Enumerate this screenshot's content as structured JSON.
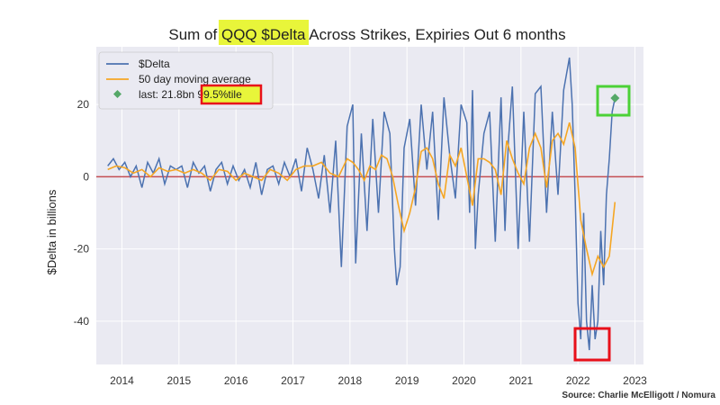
{
  "chart_data": {
    "type": "line",
    "title": {
      "before": "Sum of ",
      "highlight": "QQQ $Delta",
      "after": " Across Strikes, Expiries Out 6 months"
    },
    "ylabel": "$Delta in billions",
    "xlabel": "",
    "xlim": [
      2013.55,
      2023.15
    ],
    "ylim": [
      -52,
      36
    ],
    "xticks": [
      2014,
      2015,
      2016,
      2017,
      2018,
      2019,
      2020,
      2021,
      2022,
      2023
    ],
    "yticks": [
      -40,
      -20,
      0,
      20
    ],
    "grid": true,
    "legend_position": "top-left",
    "legend": {
      "delta": "$Delta",
      "ma": "50 day moving average",
      "last_prefix": "last: 21.8bn ",
      "last_highlight": "99.5%tile"
    },
    "source": "Source: Charlie McElligott / Nomura",
    "colors": {
      "delta": "#4c72b0",
      "ma": "#f5a623",
      "last_marker": "#55a868",
      "zero_line": "#c44e52",
      "highlight_yellow": "#e8f53a",
      "box_red": "#e8101a",
      "box_green": "#4cd137",
      "plot_bg": "#eaeaf2"
    },
    "zero_line": 0,
    "last_point": {
      "x": 2022.65,
      "y": 21.8,
      "label": "last: 21.8bn",
      "percentile": "99.5%tile"
    },
    "series": [
      {
        "name": "$Delta",
        "x": [
          2013.75,
          2013.85,
          2013.95,
          2014.05,
          2014.15,
          2014.25,
          2014.35,
          2014.45,
          2014.55,
          2014.65,
          2014.75,
          2014.85,
          2014.95,
          2015.05,
          2015.15,
          2015.25,
          2015.35,
          2015.45,
          2015.55,
          2015.65,
          2015.75,
          2015.85,
          2015.95,
          2016.05,
          2016.15,
          2016.25,
          2016.35,
          2016.45,
          2016.55,
          2016.65,
          2016.75,
          2016.85,
          2016.95,
          2017.05,
          2017.15,
          2017.25,
          2017.35,
          2017.45,
          2017.55,
          2017.65,
          2017.75,
          2017.85,
          2017.95,
          2018.05,
          2018.1,
          2018.2,
          2018.3,
          2018.4,
          2018.5,
          2018.6,
          2018.7,
          2018.78,
          2018.82,
          2018.88,
          2018.95,
          2019.05,
          2019.15,
          2019.25,
          2019.35,
          2019.45,
          2019.55,
          2019.65,
          2019.75,
          2019.85,
          2019.95,
          2020.05,
          2020.1,
          2020.15,
          2020.2,
          2020.25,
          2020.35,
          2020.45,
          2020.55,
          2020.65,
          2020.72,
          2020.78,
          2020.85,
          2020.95,
          2021.05,
          2021.15,
          2021.25,
          2021.35,
          2021.45,
          2021.55,
          2021.65,
          2021.75,
          2021.85,
          2021.9,
          2021.95,
          2022.0,
          2022.05,
          2022.1,
          2022.15,
          2022.2,
          2022.25,
          2022.3,
          2022.35,
          2022.4,
          2022.45,
          2022.5,
          2022.55,
          2022.6,
          2022.65
        ],
        "values": [
          3,
          5,
          2,
          4,
          0,
          3,
          -3,
          4,
          1,
          5,
          -2,
          3,
          2,
          3,
          -3,
          4,
          1,
          3,
          -4,
          2,
          4,
          -2,
          3,
          -1,
          2,
          -3,
          4,
          -5,
          2,
          3,
          -2,
          4,
          0,
          5,
          -4,
          8,
          2,
          -6,
          6,
          -10,
          10,
          -25,
          14,
          20,
          -24,
          12,
          -15,
          16,
          -10,
          18,
          12,
          -20,
          -30,
          -25,
          8,
          16,
          -8,
          20,
          2,
          18,
          -12,
          22,
          6,
          -6,
          20,
          15,
          -10,
          24,
          -20,
          -5,
          12,
          18,
          -18,
          22,
          -15,
          10,
          25,
          -20,
          18,
          -18,
          23,
          25,
          -10,
          18,
          -5,
          24,
          33,
          20,
          -5,
          -35,
          -45,
          -10,
          -40,
          -48,
          -30,
          -45,
          -40,
          -15,
          -30,
          -5,
          5,
          18,
          21.8
        ]
      },
      {
        "name": "50 day moving average",
        "x": [
          2013.75,
          2013.9,
          2014.05,
          2014.2,
          2014.35,
          2014.5,
          2014.65,
          2014.8,
          2014.95,
          2015.1,
          2015.25,
          2015.4,
          2015.55,
          2015.7,
          2015.85,
          2016.0,
          2016.15,
          2016.3,
          2016.45,
          2016.6,
          2016.75,
          2016.9,
          2017.05,
          2017.2,
          2017.35,
          2017.5,
          2017.65,
          2017.8,
          2017.95,
          2018.05,
          2018.15,
          2018.25,
          2018.35,
          2018.45,
          2018.55,
          2018.65,
          2018.75,
          2018.85,
          2018.95,
          2019.05,
          2019.15,
          2019.25,
          2019.35,
          2019.45,
          2019.55,
          2019.65,
          2019.75,
          2019.85,
          2019.95,
          2020.05,
          2020.15,
          2020.25,
          2020.35,
          2020.45,
          2020.55,
          2020.65,
          2020.75,
          2020.85,
          2020.95,
          2021.05,
          2021.15,
          2021.25,
          2021.35,
          2021.45,
          2021.55,
          2021.65,
          2021.75,
          2021.85,
          2021.95,
          2022.05,
          2022.15,
          2022.25,
          2022.35,
          2022.45,
          2022.55,
          2022.65
        ],
        "values": [
          2,
          3,
          2.5,
          1,
          2,
          0,
          2.5,
          1.5,
          2,
          1,
          2,
          1,
          -1,
          2,
          1.5,
          -1,
          1,
          0,
          -1,
          2,
          1,
          -1,
          2,
          3,
          3,
          4,
          1,
          0,
          5,
          4,
          2,
          -1,
          3,
          2,
          6,
          5,
          0,
          -8,
          -15,
          -10,
          -3,
          7,
          8,
          5,
          -2,
          -6,
          6,
          3,
          8,
          0,
          -8,
          5,
          5,
          4,
          2,
          -5,
          10,
          5,
          1,
          -2,
          8,
          12,
          8,
          -3,
          10,
          12,
          9,
          15,
          8,
          -12,
          -20,
          -27,
          -22,
          -25,
          -22,
          -7
        ]
      }
    ]
  }
}
